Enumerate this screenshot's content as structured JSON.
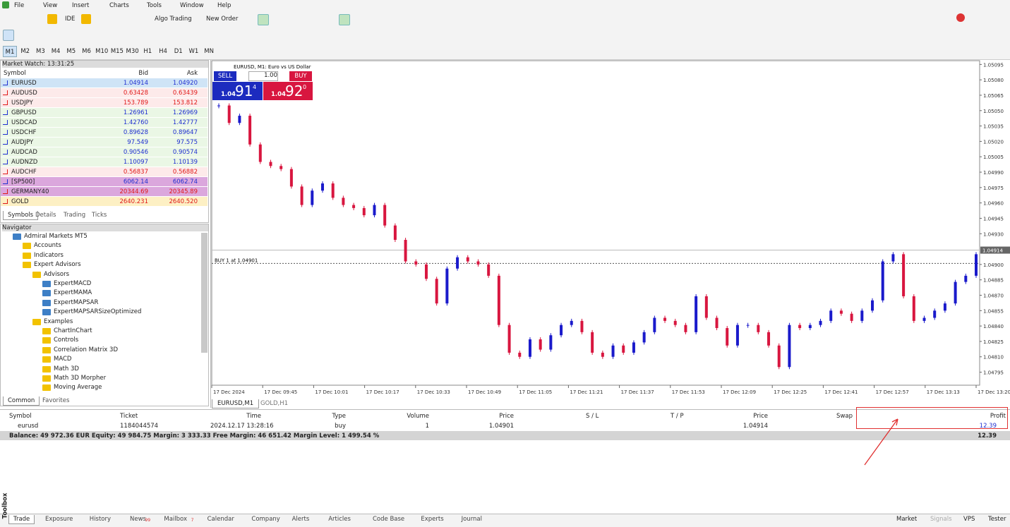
{
  "menu": [
    "File",
    "View",
    "Insert",
    "Charts",
    "Tools",
    "Window",
    "Help"
  ],
  "toolbar": {
    "ide": "IDE",
    "algo": "Algo Trading",
    "new_order": "New Order"
  },
  "timeframes": [
    "M1",
    "M2",
    "M3",
    "M4",
    "M5",
    "M6",
    "M10",
    "M15",
    "M30",
    "H1",
    "H4",
    "D1",
    "W1",
    "MN"
  ],
  "market_watch": {
    "title": "Market Watch: 13:31:25",
    "columns": [
      "Symbol",
      "Bid",
      "Ask"
    ],
    "rows": [
      {
        "symbol": "EURUSD",
        "bid": "1.04914",
        "ask": "1.04920",
        "bg": "#cfe4f6",
        "fg": "#1f2fd0"
      },
      {
        "symbol": "AUDUSD",
        "bid": "0.63428",
        "ask": "0.63439",
        "bg": "#fdeaea",
        "fg": "#e01818"
      },
      {
        "symbol": "USDJPY",
        "bid": "153.789",
        "ask": "153.812",
        "bg": "#fdeaea",
        "fg": "#e01818"
      },
      {
        "symbol": "GBPUSD",
        "bid": "1.26961",
        "ask": "1.26969",
        "bg": "#eaf7e5",
        "fg": "#1f2fd0"
      },
      {
        "symbol": "USDCAD",
        "bid": "1.42760",
        "ask": "1.42777",
        "bg": "#eaf7e5",
        "fg": "#1f2fd0"
      },
      {
        "symbol": "USDCHF",
        "bid": "0.89628",
        "ask": "0.89647",
        "bg": "#eaf7e5",
        "fg": "#1f2fd0"
      },
      {
        "symbol": "AUDJPY",
        "bid": "97.549",
        "ask": "97.575",
        "bg": "#eaf7e5",
        "fg": "#1f2fd0"
      },
      {
        "symbol": "AUDCAD",
        "bid": "0.90546",
        "ask": "0.90574",
        "bg": "#eaf7e5",
        "fg": "#1f2fd0"
      },
      {
        "symbol": "AUDNZD",
        "bid": "1.10097",
        "ask": "1.10139",
        "bg": "#eaf7e5",
        "fg": "#1f2fd0"
      },
      {
        "symbol": "AUDCHF",
        "bid": "0.56837",
        "ask": "0.56882",
        "bg": "#fdeaea",
        "fg": "#e01818"
      },
      {
        "symbol": "[SP500]",
        "bid": "6062.14",
        "ask": "6062.74",
        "bg": "#dba7dd",
        "fg": "#1f2fd0"
      },
      {
        "symbol": "GERMANY40",
        "bid": "20344.69",
        "ask": "20345.89",
        "bg": "#dba7dd",
        "fg": "#e01818"
      },
      {
        "symbol": "GOLD",
        "bid": "2640.231",
        "ask": "2640.520",
        "bg": "#fdf0c4",
        "fg": "#e01818"
      }
    ],
    "tabs": [
      "Symbols",
      "Details",
      "Trading",
      "Ticks"
    ]
  },
  "navigator": {
    "title": "Navigator",
    "items": [
      {
        "label": "Admiral Markets MT5",
        "level": 0
      },
      {
        "label": "Accounts",
        "level": 1
      },
      {
        "label": "Indicators",
        "level": 1
      },
      {
        "label": "Expert Advisors",
        "level": 1
      },
      {
        "label": "Advisors",
        "level": 2
      },
      {
        "label": "ExpertMACD",
        "level": 3
      },
      {
        "label": "ExpertMAMA",
        "level": 3
      },
      {
        "label": "ExpertMAPSAR",
        "level": 3
      },
      {
        "label": "ExpertMAPSARSizeOptimized",
        "level": 3
      },
      {
        "label": "Examples",
        "level": 2
      },
      {
        "label": "ChartInChart",
        "level": 3
      },
      {
        "label": "Controls",
        "level": 3
      },
      {
        "label": "Correlation Matrix 3D",
        "level": 3
      },
      {
        "label": "MACD",
        "level": 3
      },
      {
        "label": "Math 3D",
        "level": 3
      },
      {
        "label": "Math 3D Morpher",
        "level": 3
      },
      {
        "label": "Moving Average",
        "level": 3
      }
    ],
    "tabs": [
      "Common",
      "Favorites"
    ]
  },
  "chart": {
    "title": "EURUSD, M1:  Euro vs US Dollar",
    "quick": {
      "sell": "SELL",
      "buy": "BUY",
      "volume": "1.00",
      "sell_prefix": "1.04",
      "sell_big": "91",
      "sell_small": "4",
      "buy_prefix": "1.04",
      "buy_big": "92",
      "buy_small": "0"
    },
    "ylim": [
      1.04783,
      1.05098
    ],
    "yticks": [
      1.05095,
      {
        "value": 1.0508,
        "label": "1.05080"
      },
      1.05065,
      {
        "value": 1.0505,
        "label": "1.05050"
      },
      1.05035,
      {
        "value": 1.0502,
        "label": "1.05020"
      },
      1.05005,
      {
        "value": 1.0499,
        "label": "1.04990"
      },
      1.04975,
      {
        "value": 1.0496,
        "label": "1.04960"
      },
      1.04945,
      {
        "value": 1.0493,
        "label": "1.04930"
      },
      {
        "value": 1.049,
        "label": "1.04900"
      },
      1.04885,
      {
        "value": 1.0487,
        "label": "1.04870"
      },
      1.04855,
      {
        "value": 1.0484,
        "label": "1.04840"
      },
      1.04825,
      {
        "value": 1.0481,
        "label": "1.04810"
      },
      1.04795
    ],
    "x_labels": [
      "17 Dec 2024",
      "17 Dec 09:45",
      "17 Dec 10:01",
      "17 Dec 10:17",
      "17 Dec 10:33",
      "17 Dec 10:49",
      "17 Dec 11:05",
      "17 Dec 11:21",
      "17 Dec 11:37",
      "17 Dec 11:53",
      "17 Dec 12:09",
      "17 Dec 12:25",
      "17 Dec 12:41",
      "17 Dec 12:57",
      "17 Dec 13:13",
      "17 Dec 13:20"
    ],
    "closes": [
      1.05055,
      1.05038,
      1.05045,
      1.05017,
      1.05,
      1.04996,
      1.04993,
      1.04976,
      1.04958,
      1.04972,
      1.04979,
      1.04965,
      1.04958,
      1.04955,
      1.04948,
      1.04958,
      1.04938,
      1.04924,
      1.04903,
      1.049,
      1.04886,
      1.04862,
      1.04896,
      1.04907,
      1.04903,
      1.049,
      1.04889,
      1.04841,
      1.04814,
      1.0481,
      1.04827,
      1.04817,
      1.04831,
      1.04841,
      1.04845,
      1.04834,
      1.04814,
      1.0481,
      1.04821,
      1.04814,
      1.04824,
      1.04834,
      1.04848,
      1.04845,
      1.04841,
      1.04834,
      1.04869,
      1.04848,
      1.04838,
      1.04821,
      1.04841,
      1.04841,
      1.04834,
      1.04821,
      1.048,
      1.04841,
      1.04838,
      1.04841,
      1.04845,
      1.04855,
      1.04852,
      1.04845,
      1.04855,
      1.04865,
      1.04903,
      1.0491,
      1.04869,
      1.04845,
      1.04848,
      1.04855,
      1.04862,
      1.04883,
      1.04889,
      1.0491
    ],
    "up_color": "#1a1acb",
    "down_color": "#d8163f",
    "price_line": 1.04914,
    "order_line": {
      "value": 1.04901,
      "label": "BUY 1 at 1.04901"
    },
    "tabs": [
      "EURUSD,M1",
      "GOLD,H1"
    ]
  },
  "trade": {
    "columns": [
      "Symbol",
      "Ticket",
      "Time",
      "Type",
      "Volume",
      "Price",
      "S / L",
      "T / P",
      "Price",
      "Swap",
      "Profit"
    ],
    "row": {
      "symbol": "eurusd",
      "ticket": "1184044574",
      "time": "2024.12.17 13:28:16",
      "type": "buy",
      "volume": "1",
      "open_price": "1.04901",
      "price": "1.04914",
      "profit": "12.39"
    },
    "balance": "Balance: 49 972.36 EUR  Equity: 49 984.75  Margin: 3 333.33  Free Margin: 46 651.42  Margin Level: 1 499.54 %",
    "total": "12.39"
  },
  "toolbox": {
    "label": "Toolbox",
    "tabs": [
      "Trade",
      "Exposure",
      "History",
      "News",
      "Mailbox",
      "Calendar",
      "Company",
      "Alerts",
      "Articles",
      "Code Base",
      "Experts",
      "Journal"
    ],
    "news_count": "99",
    "mail_count": "7",
    "right": [
      "Market",
      "Signals",
      "VPS",
      "Tester"
    ]
  }
}
